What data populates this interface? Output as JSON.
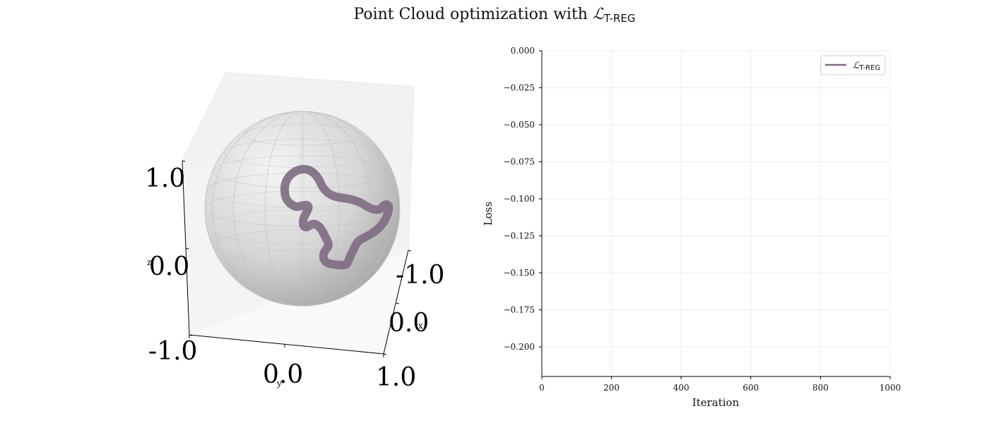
{
  "title": {
    "prefix": "Point Cloud optimization with ",
    "symbol": "ℒ",
    "subscript": "T-REG"
  },
  "colors": {
    "series": "#7f6e82",
    "sphere": "#d9d9d9",
    "pane": "#f2f2f2",
    "grid": "#e6e6e6",
    "axis": "#000000"
  },
  "chart_data": [
    {
      "type": "scatter3d",
      "object": "sphere with point-cloud curve",
      "axes": {
        "x": {
          "label": "x",
          "ticks": [
            "-1.0",
            "0.0",
            "1.0"
          ]
        },
        "y": {
          "label": "y",
          "ticks": [
            "-1.0",
            "0.0",
            "1.0"
          ]
        },
        "z": {
          "label": "z",
          "ticks": [
            "1.0",
            "0.0",
            "-1.0"
          ]
        }
      },
      "series_color": "#7f6e82"
    },
    {
      "type": "line",
      "xlabel": "Iteration",
      "ylabel": "Loss",
      "xlim": [
        0,
        1000
      ],
      "ylim": [
        -0.22,
        0.0
      ],
      "xticks": [
        0,
        200,
        400,
        600,
        800,
        1000
      ],
      "yticks": [
        0.0,
        -0.025,
        -0.05,
        -0.075,
        -0.1,
        -0.125,
        -0.15,
        -0.175,
        -0.2
      ],
      "ytick_labels": [
        "0.000",
        "−0.025",
        "−0.050",
        "−0.075",
        "−0.100",
        "−0.125",
        "−0.150",
        "−0.175",
        "−0.200"
      ],
      "grid": true,
      "legend_position": "top-right",
      "series": [
        {
          "name": "ℒT-REG",
          "values": []
        }
      ]
    }
  ]
}
